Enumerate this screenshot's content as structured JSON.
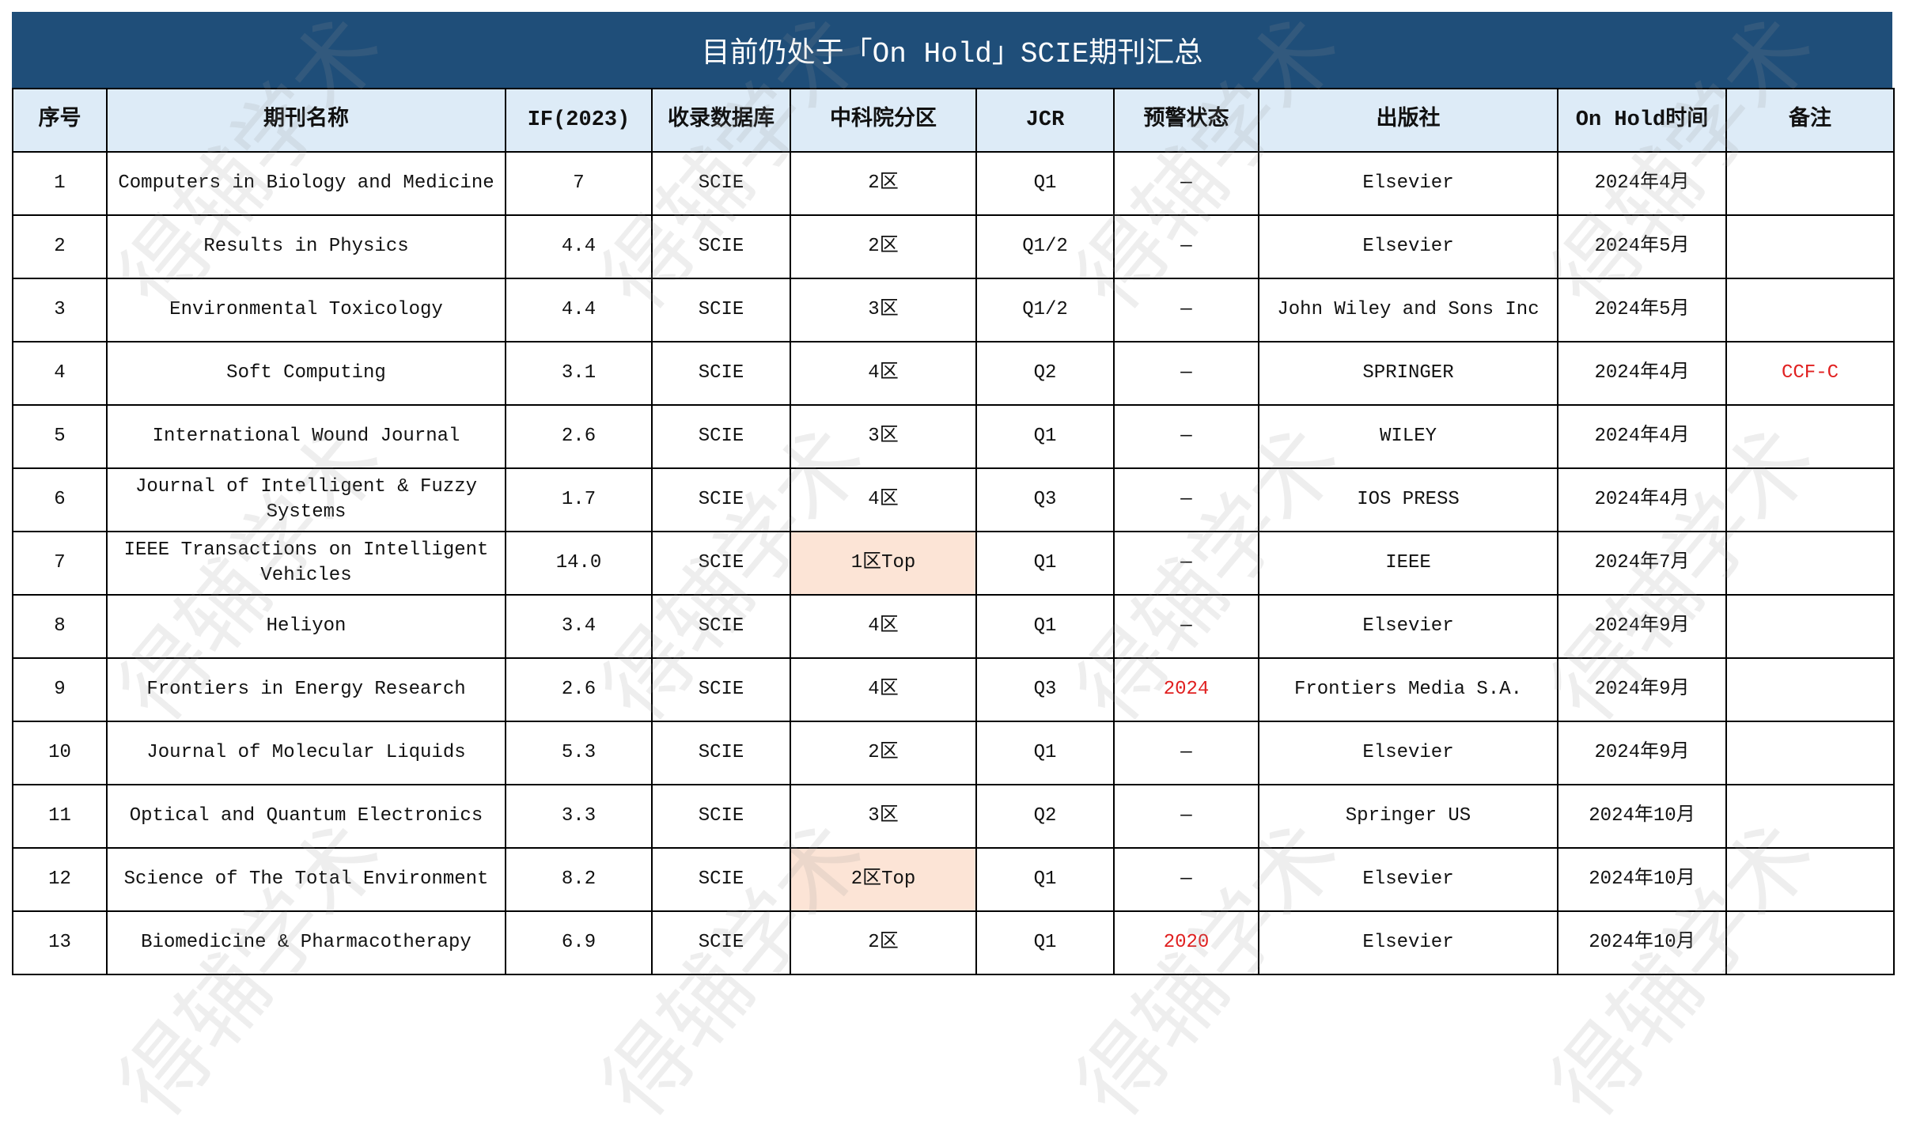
{
  "title": "目前仍处于「On Hold」SCIE期刊汇总",
  "watermark": "得辅学术",
  "columns": [
    "序号",
    "期刊名称",
    "IF(2023)",
    "收录数据库",
    "中科院分区",
    "JCR",
    "预警状态",
    "出版社",
    "On Hold时间",
    "备注"
  ],
  "highlight_color": "#fce4d6",
  "warning_color": "#e02020",
  "rows": [
    {
      "no": "1",
      "name": "Computers in Biology and Medicine",
      "if": "7",
      "db": "SCIE",
      "cas": "2区",
      "jcr": "Q1",
      "warn": "—",
      "pub": "Elsevier",
      "time": "2024年4月",
      "note": ""
    },
    {
      "no": "2",
      "name": "Results in Physics",
      "if": "4.4",
      "db": "SCIE",
      "cas": "2区",
      "jcr": "Q1/2",
      "warn": "—",
      "pub": "Elsevier",
      "time": "2024年5月",
      "note": ""
    },
    {
      "no": "3",
      "name": "Environmental Toxicology",
      "if": "4.4",
      "db": "SCIE",
      "cas": "3区",
      "jcr": "Q1/2",
      "warn": "—",
      "pub": "John Wiley and Sons Inc",
      "time": "2024年5月",
      "note": ""
    },
    {
      "no": "4",
      "name": "Soft Computing",
      "if": "3.1",
      "db": "SCIE",
      "cas": "4区",
      "jcr": "Q2",
      "warn": "—",
      "pub": "SPRINGER",
      "time": "2024年4月",
      "note": "CCF-C"
    },
    {
      "no": "5",
      "name": "International Wound Journal",
      "if": "2.6",
      "db": "SCIE",
      "cas": "3区",
      "jcr": "Q1",
      "warn": "—",
      "pub": "WILEY",
      "time": "2024年4月",
      "note": ""
    },
    {
      "no": "6",
      "name": "Journal of Intelligent & Fuzzy Systems",
      "if": "1.7",
      "db": "SCIE",
      "cas": "4区",
      "jcr": "Q3",
      "warn": "—",
      "pub": "IOS PRESS",
      "time": "2024年4月",
      "note": ""
    },
    {
      "no": "7",
      "name": "IEEE Transactions on Intelligent Vehicles",
      "if": "14.0",
      "db": "SCIE",
      "cas": "1区Top",
      "jcr": "Q1",
      "warn": "—",
      "pub": "IEEE",
      "time": "2024年7月",
      "note": "",
      "hl": true
    },
    {
      "no": "8",
      "name": "Heliyon",
      "if": "3.4",
      "db": "SCIE",
      "cas": "4区",
      "jcr": "Q1",
      "warn": "—",
      "pub": "Elsevier",
      "time": "2024年9月",
      "note": ""
    },
    {
      "no": "9",
      "name": "Frontiers in Energy Research",
      "if": "2.6",
      "db": "SCIE",
      "cas": "4区",
      "jcr": "Q3",
      "warn": "2024",
      "pub": "Frontiers Media S.A.",
      "time": "2024年9月",
      "note": ""
    },
    {
      "no": "10",
      "name": "Journal of Molecular Liquids",
      "if": "5.3",
      "db": "SCIE",
      "cas": "2区",
      "jcr": "Q1",
      "warn": "—",
      "pub": "Elsevier",
      "time": "2024年9月",
      "note": ""
    },
    {
      "no": "11",
      "name": "Optical and Quantum Electronics",
      "if": "3.3",
      "db": "SCIE",
      "cas": "3区",
      "jcr": "Q2",
      "warn": "—",
      "pub": "Springer US",
      "time": "2024年10月",
      "note": ""
    },
    {
      "no": "12",
      "name": "Science of The Total Environment",
      "if": "8.2",
      "db": "SCIE",
      "cas": "2区Top",
      "jcr": "Q1",
      "warn": "—",
      "pub": "Elsevier",
      "time": "2024年10月",
      "note": "",
      "hl": true
    },
    {
      "no": "13",
      "name": "Biomedicine & Pharmacotherapy",
      "if": "6.9",
      "db": "SCIE",
      "cas": "2区",
      "jcr": "Q1",
      "warn": "2020",
      "pub": "Elsevier",
      "time": "2024年10月",
      "note": ""
    }
  ]
}
